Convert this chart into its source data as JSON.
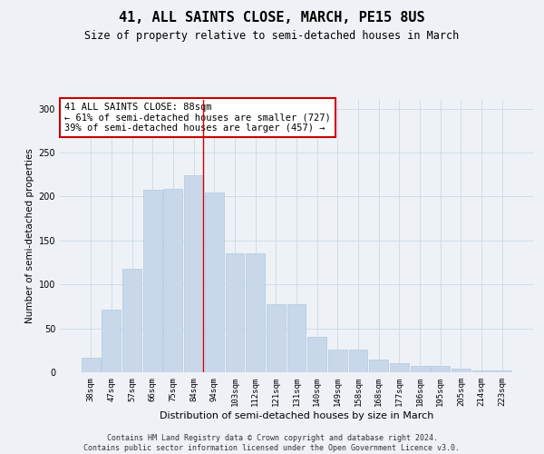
{
  "title": "41, ALL SAINTS CLOSE, MARCH, PE15 8US",
  "subtitle": "Size of property relative to semi-detached houses in March",
  "xlabel": "Distribution of semi-detached houses by size in March",
  "ylabel": "Number of semi-detached properties",
  "categories": [
    "38sqm",
    "47sqm",
    "57sqm",
    "66sqm",
    "75sqm",
    "84sqm",
    "94sqm",
    "103sqm",
    "112sqm",
    "121sqm",
    "131sqm",
    "140sqm",
    "149sqm",
    "158sqm",
    "168sqm",
    "177sqm",
    "186sqm",
    "195sqm",
    "205sqm",
    "214sqm",
    "223sqm"
  ],
  "values": [
    17,
    71,
    118,
    208,
    209,
    224,
    205,
    135,
    135,
    78,
    78,
    40,
    26,
    26,
    14,
    10,
    7,
    7,
    4,
    2,
    2
  ],
  "bar_color": "#c8d8ea",
  "bar_edge_color": "#b0c8e0",
  "grid_color": "#d0dce8",
  "marker_bin_index": 5,
  "marker_color": "#cc0000",
  "annotation_text": "41 ALL SAINTS CLOSE: 88sqm\n← 61% of semi-detached houses are smaller (727)\n39% of semi-detached houses are larger (457) →",
  "annotation_box_color": "#ffffff",
  "annotation_box_edge_color": "#cc0000",
  "footer": "Contains HM Land Registry data © Crown copyright and database right 2024.\nContains public sector information licensed under the Open Government Licence v3.0.",
  "ylim": [
    0,
    310
  ],
  "background_color": "#eef2f6",
  "title_fontsize": 11,
  "subtitle_fontsize": 8.5,
  "ylabel_fontsize": 7.5,
  "xlabel_fontsize": 8,
  "tick_fontsize": 6.5,
  "annotation_fontsize": 7.5,
  "footer_fontsize": 6
}
